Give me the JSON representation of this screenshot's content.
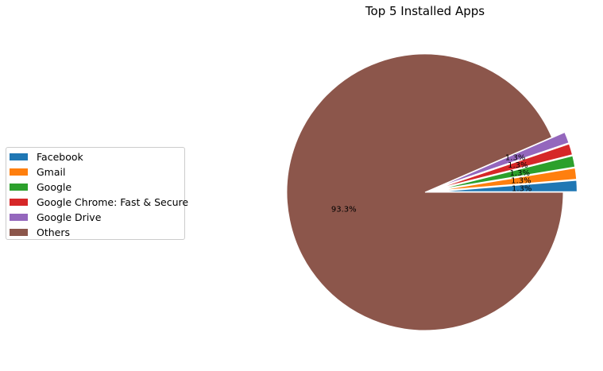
{
  "chart_data": {
    "type": "pie",
    "title": "Top 5 Installed Apps",
    "categories": [
      "Facebook",
      "Gmail",
      "Google",
      "Google Chrome: Fast & Secure",
      "Google Drive",
      "Others"
    ],
    "values": [
      1.3,
      1.3,
      1.3,
      1.3,
      1.3,
      93.3
    ],
    "labels": [
      "1.3%",
      "1.3%",
      "1.3%",
      "1.3%",
      "1.3%",
      "93.3%"
    ],
    "colors": [
      "#1f77b4",
      "#ff7f0e",
      "#2ca02c",
      "#d62728",
      "#9467bd",
      "#8c564b"
    ],
    "explode": [
      0.1,
      0.1,
      0.1,
      0.1,
      0.1,
      0
    ],
    "start_angle": 0,
    "legend": "left-center"
  }
}
